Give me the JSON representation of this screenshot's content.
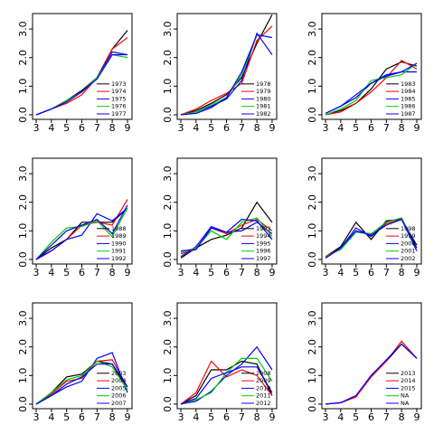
{
  "chart_data": [
    {
      "type": "line",
      "x": [
        3,
        4,
        5,
        6,
        7,
        8,
        9
      ],
      "xlim": [
        2.76,
        9.3
      ],
      "ylim": [
        -0.16,
        3.54
      ],
      "xticks": [
        3,
        4,
        5,
        6,
        7,
        8,
        9
      ],
      "yticks": [
        {
          "value": 0,
          "label": "0.0"
        },
        {
          "value": 1,
          "label": "1.0"
        },
        {
          "value": 2,
          "label": "2.0"
        },
        {
          "value": 3,
          "label": "3.0"
        }
      ],
      "legend": "bottom-right",
      "series": [
        {
          "name": "1973",
          "color": "#000000",
          "values": [
            0,
            0.2,
            0.5,
            0.85,
            1.3,
            2.3,
            2.95
          ]
        },
        {
          "name": "1974",
          "color": "#ff0000",
          "values": [
            0,
            0.2,
            0.4,
            0.7,
            1.3,
            2.3,
            2.7
          ]
        },
        {
          "name": "1975",
          "color": "#0000ff",
          "values": [
            0,
            0.2,
            0.5,
            0.8,
            1.3,
            2.2,
            2.1
          ]
        },
        {
          "name": "1976",
          "color": "#00cc00",
          "values": [
            0,
            0.2,
            0.5,
            0.8,
            1.3,
            2.1,
            2.0
          ]
        },
        {
          "name": "1977",
          "color": "#0000ff",
          "values": [
            0,
            0.2,
            0.45,
            0.8,
            1.25,
            2.1,
            2.1
          ]
        }
      ]
    },
    {
      "type": "line",
      "x": [
        3,
        4,
        5,
        6,
        7,
        8,
        9
      ],
      "xlim": [
        2.76,
        9.3
      ],
      "ylim": [
        -0.16,
        3.54
      ],
      "xticks": [
        3,
        4,
        5,
        6,
        7,
        8,
        9
      ],
      "yticks": [
        {
          "value": 0,
          "label": "0.0"
        },
        {
          "value": 1,
          "label": "1.0"
        },
        {
          "value": 2,
          "label": "2.0"
        },
        {
          "value": 3,
          "label": "3.0"
        }
      ],
      "legend": "bottom-right",
      "series": [
        {
          "name": "1978",
          "color": "#000000",
          "values": [
            0,
            0.15,
            0.4,
            0.7,
            1.3,
            2.5,
            3.5
          ]
        },
        {
          "name": "1979",
          "color": "#ff0000",
          "values": [
            0,
            0.2,
            0.5,
            0.75,
            1.1,
            2.6,
            3.1
          ]
        },
        {
          "name": "1980",
          "color": "#0000ff",
          "values": [
            0,
            0.1,
            0.3,
            0.55,
            1.2,
            2.85,
            2.1
          ]
        },
        {
          "name": "1981",
          "color": "#00cc00",
          "values": [
            0,
            0.1,
            0.35,
            0.6,
            1.4,
            2.8,
            2.7
          ]
        },
        {
          "name": "1982",
          "color": "#0000ff",
          "values": [
            0,
            0.05,
            0.25,
            0.6,
            1.5,
            2.8,
            2.7
          ]
        }
      ]
    },
    {
      "type": "line",
      "x": [
        3,
        4,
        5,
        6,
        7,
        8,
        9
      ],
      "xlim": [
        2.76,
        9.3
      ],
      "ylim": [
        -0.16,
        3.54
      ],
      "xticks": [
        3,
        4,
        5,
        6,
        7,
        8,
        9
      ],
      "yticks": [
        {
          "value": 0,
          "label": "0.0"
        },
        {
          "value": 1,
          "label": "1.0"
        },
        {
          "value": 2,
          "label": "2.0"
        },
        {
          "value": 3,
          "label": "3.0"
        }
      ],
      "legend": "bottom-right",
      "series": [
        {
          "name": "1983",
          "color": "#000000",
          "values": [
            0,
            0.15,
            0.4,
            0.9,
            1.6,
            1.85,
            1.7
          ]
        },
        {
          "name": "1984",
          "color": "#ff0000",
          "values": [
            0,
            0.1,
            0.4,
            0.8,
            1.3,
            1.9,
            1.6
          ]
        },
        {
          "name": "1985",
          "color": "#0000ff",
          "values": [
            0.05,
            0.3,
            0.6,
            1.1,
            1.35,
            1.5,
            1.5
          ]
        },
        {
          "name": "1986",
          "color": "#00cc00",
          "values": [
            0,
            0.2,
            0.5,
            1.2,
            1.3,
            1.4,
            1.8
          ]
        },
        {
          "name": "1987",
          "color": "#0000ff",
          "values": [
            0.05,
            0.3,
            0.7,
            1.1,
            1.4,
            1.5,
            1.8
          ]
        }
      ]
    },
    {
      "type": "line",
      "x": [
        3,
        4,
        5,
        6,
        7,
        8,
        9
      ],
      "xlim": [
        2.76,
        9.3
      ],
      "ylim": [
        -0.16,
        3.54
      ],
      "xticks": [
        3,
        4,
        5,
        6,
        7,
        8,
        9
      ],
      "yticks": [
        {
          "value": 0,
          "label": "0.0"
        },
        {
          "value": 1,
          "label": "1.0"
        },
        {
          "value": 2,
          "label": "2.0"
        },
        {
          "value": 3,
          "label": "3.0"
        }
      ],
      "legend": "bottom-right",
      "series": [
        {
          "name": "1988",
          "color": "#000000",
          "values": [
            0,
            0.4,
            0.7,
            1.3,
            1.3,
            1.3,
            1.8
          ]
        },
        {
          "name": "1989",
          "color": "#ff0000",
          "values": [
            0,
            0.3,
            0.7,
            1.2,
            1.3,
            1.2,
            2.1
          ]
        },
        {
          "name": "1990",
          "color": "#0000ff",
          "values": [
            0,
            0.3,
            0.7,
            0.85,
            1.6,
            1.35,
            1.8
          ]
        },
        {
          "name": "1991",
          "color": "#00cc00",
          "values": [
            0,
            0.6,
            1.1,
            1.15,
            1.35,
            0.8,
            1.8
          ]
        },
        {
          "name": "1992",
          "color": "#0000ff",
          "values": [
            0,
            0.5,
            1.0,
            1.2,
            1.4,
            0.9,
            1.9
          ]
        }
      ]
    },
    {
      "type": "line",
      "x": [
        3,
        4,
        5,
        6,
        7,
        8,
        9
      ],
      "xlim": [
        2.76,
        9.3
      ],
      "ylim": [
        -0.16,
        3.54
      ],
      "xticks": [
        3,
        4,
        5,
        6,
        7,
        8,
        9
      ],
      "yticks": [
        {
          "value": 0,
          "label": "0.0"
        },
        {
          "value": 1,
          "label": "1.0"
        },
        {
          "value": 2,
          "label": "2.0"
        },
        {
          "value": 3,
          "label": "3.0"
        }
      ],
      "legend": "bottom-right",
      "series": [
        {
          "name": "1993",
          "color": "#000000",
          "values": [
            0.05,
            0.4,
            0.7,
            0.85,
            1.1,
            2.0,
            1.3
          ]
        },
        {
          "name": "1994",
          "color": "#ff0000",
          "values": [
            0.2,
            0.35,
            1.1,
            0.9,
            1.2,
            1.4,
            1.0
          ]
        },
        {
          "name": "1995",
          "color": "#0000ff",
          "values": [
            0.1,
            0.45,
            1.15,
            0.95,
            1.0,
            1.3,
            0.9
          ]
        },
        {
          "name": "1996",
          "color": "#00cc00",
          "values": [
            0.25,
            0.4,
            1.0,
            0.7,
            1.3,
            1.45,
            0.8
          ]
        },
        {
          "name": "1997",
          "color": "#0000ff",
          "values": [
            0.3,
            0.35,
            1.1,
            0.95,
            1.4,
            1.35,
            0.7
          ]
        }
      ]
    },
    {
      "type": "line",
      "x": [
        3,
        4,
        5,
        6,
        7,
        8,
        9
      ],
      "xlim": [
        2.76,
        9.3
      ],
      "ylim": [
        -0.16,
        3.54
      ],
      "xticks": [
        3,
        4,
        5,
        6,
        7,
        8,
        9
      ],
      "yticks": [
        {
          "value": 0,
          "label": "0.0"
        },
        {
          "value": 1,
          "label": "1.0"
        },
        {
          "value": 2,
          "label": "2.0"
        },
        {
          "value": 3,
          "label": "3.0"
        }
      ],
      "legend": "bottom-right",
      "series": [
        {
          "name": "1998",
          "color": "#000000",
          "values": [
            0.1,
            0.45,
            1.3,
            0.7,
            1.35,
            1.4,
            0.5
          ]
        },
        {
          "name": "1999",
          "color": "#ff0000",
          "values": [
            0.1,
            0.4,
            1.0,
            0.85,
            1.25,
            1.4,
            0.4
          ]
        },
        {
          "name": "2000",
          "color": "#0000ff",
          "values": [
            0.05,
            0.4,
            1.1,
            0.8,
            1.3,
            1.45,
            0.4
          ]
        },
        {
          "name": "2001",
          "color": "#00cc00",
          "values": [
            0.1,
            0.35,
            0.95,
            0.9,
            1.3,
            1.45,
            0.3
          ]
        },
        {
          "name": "2002",
          "color": "#0000ff",
          "values": [
            0.05,
            0.4,
            1.0,
            0.85,
            1.2,
            1.4,
            0.3
          ]
        }
      ]
    },
    {
      "type": "line",
      "x": [
        3,
        4,
        5,
        6,
        7,
        8,
        9
      ],
      "xlim": [
        2.76,
        9.3
      ],
      "ylim": [
        -0.16,
        3.54
      ],
      "xticks": [
        3,
        4,
        5,
        6,
        7,
        8,
        9
      ],
      "yticks": [
        {
          "value": 0,
          "label": "0.0"
        },
        {
          "value": 1,
          "label": "1.0"
        },
        {
          "value": 2,
          "label": "2.0"
        },
        {
          "value": 3,
          "label": "3.0"
        }
      ],
      "legend": "bottom-right",
      "series": [
        {
          "name": "2003",
          "color": "#000000",
          "values": [
            0,
            0.4,
            0.95,
            1.05,
            1.5,
            1.4,
            0.5
          ]
        },
        {
          "name": "2004",
          "color": "#ff0000",
          "values": [
            0,
            0.35,
            0.8,
            0.9,
            1.5,
            1.55,
            0.6
          ]
        },
        {
          "name": "2005",
          "color": "#0000ff",
          "values": [
            0,
            0.3,
            0.6,
            0.8,
            1.6,
            1.8,
            0.4
          ]
        },
        {
          "name": "2006",
          "color": "#00cc00",
          "values": [
            0,
            0.4,
            0.85,
            1.0,
            1.5,
            1.3,
            0.5
          ]
        },
        {
          "name": "2007",
          "color": "#0000ff",
          "values": [
            0,
            0.3,
            0.7,
            0.95,
            1.4,
            1.4,
            0.6
          ]
        }
      ]
    },
    {
      "type": "line",
      "x": [
        3,
        4,
        5,
        6,
        7,
        8,
        9
      ],
      "xlim": [
        2.76,
        9.3
      ],
      "ylim": [
        -0.16,
        3.54
      ],
      "xticks": [
        3,
        4,
        5,
        6,
        7,
        8,
        9
      ],
      "yticks": [
        {
          "value": 0,
          "label": "0.0"
        },
        {
          "value": 1,
          "label": "1.0"
        },
        {
          "value": 2,
          "label": "2.0"
        },
        {
          "value": 3,
          "label": "3.0"
        }
      ],
      "legend": "bottom-right",
      "series": [
        {
          "name": "2008",
          "color": "#000000",
          "values": [
            0,
            0.3,
            1.2,
            1.2,
            1.5,
            1.4,
            0.3
          ]
        },
        {
          "name": "2009",
          "color": "#ff0000",
          "values": [
            0,
            0.4,
            1.5,
            0.95,
            1.2,
            1.0,
            0.3
          ]
        },
        {
          "name": "2010",
          "color": "#0000ff",
          "values": [
            0,
            0.1,
            0.45,
            1.0,
            1.4,
            2.0,
            1.2
          ]
        },
        {
          "name": "2011",
          "color": "#00cc00",
          "values": [
            0,
            0.15,
            0.4,
            1.1,
            1.6,
            1.6,
            0.8
          ]
        },
        {
          "name": "2012",
          "color": "#0000ff",
          "values": [
            0,
            0.2,
            0.9,
            1.1,
            1.3,
            1.3,
            0.4
          ]
        }
      ]
    },
    {
      "type": "line",
      "x": [
        3,
        4,
        5,
        6,
        7,
        8,
        9
      ],
      "xlim": [
        2.76,
        9.3
      ],
      "ylim": [
        -0.16,
        3.54
      ],
      "xticks": [
        3,
        4,
        5,
        6,
        7,
        8,
        9
      ],
      "yticks": [
        {
          "value": 0,
          "label": "0.0"
        },
        {
          "value": 1,
          "label": "1.0"
        },
        {
          "value": 2,
          "label": "2.0"
        },
        {
          "value": 3,
          "label": "3.0"
        }
      ],
      "legend": "bottom-right",
      "series": [
        {
          "name": "2013",
          "color": "#000000",
          "values": [
            0,
            0.05,
            0.25,
            1.0,
            1.5,
            2.1,
            1.6
          ]
        },
        {
          "name": "2014",
          "color": "#ff0000",
          "values": [
            0,
            0.05,
            0.25,
            0.95,
            1.5,
            2.2,
            1.6
          ]
        },
        {
          "name": "2015",
          "color": "#0000ff",
          "values": [
            0,
            0.05,
            0.3,
            1.0,
            1.55,
            2.1,
            1.6
          ]
        },
        {
          "name": "NA",
          "color": "#00cc00",
          "values": [
            null,
            null,
            null,
            null,
            null,
            null,
            null
          ]
        },
        {
          "name": "NA",
          "color": "#0000ff",
          "values": [
            null,
            null,
            null,
            null,
            null,
            null,
            null
          ]
        }
      ]
    }
  ]
}
